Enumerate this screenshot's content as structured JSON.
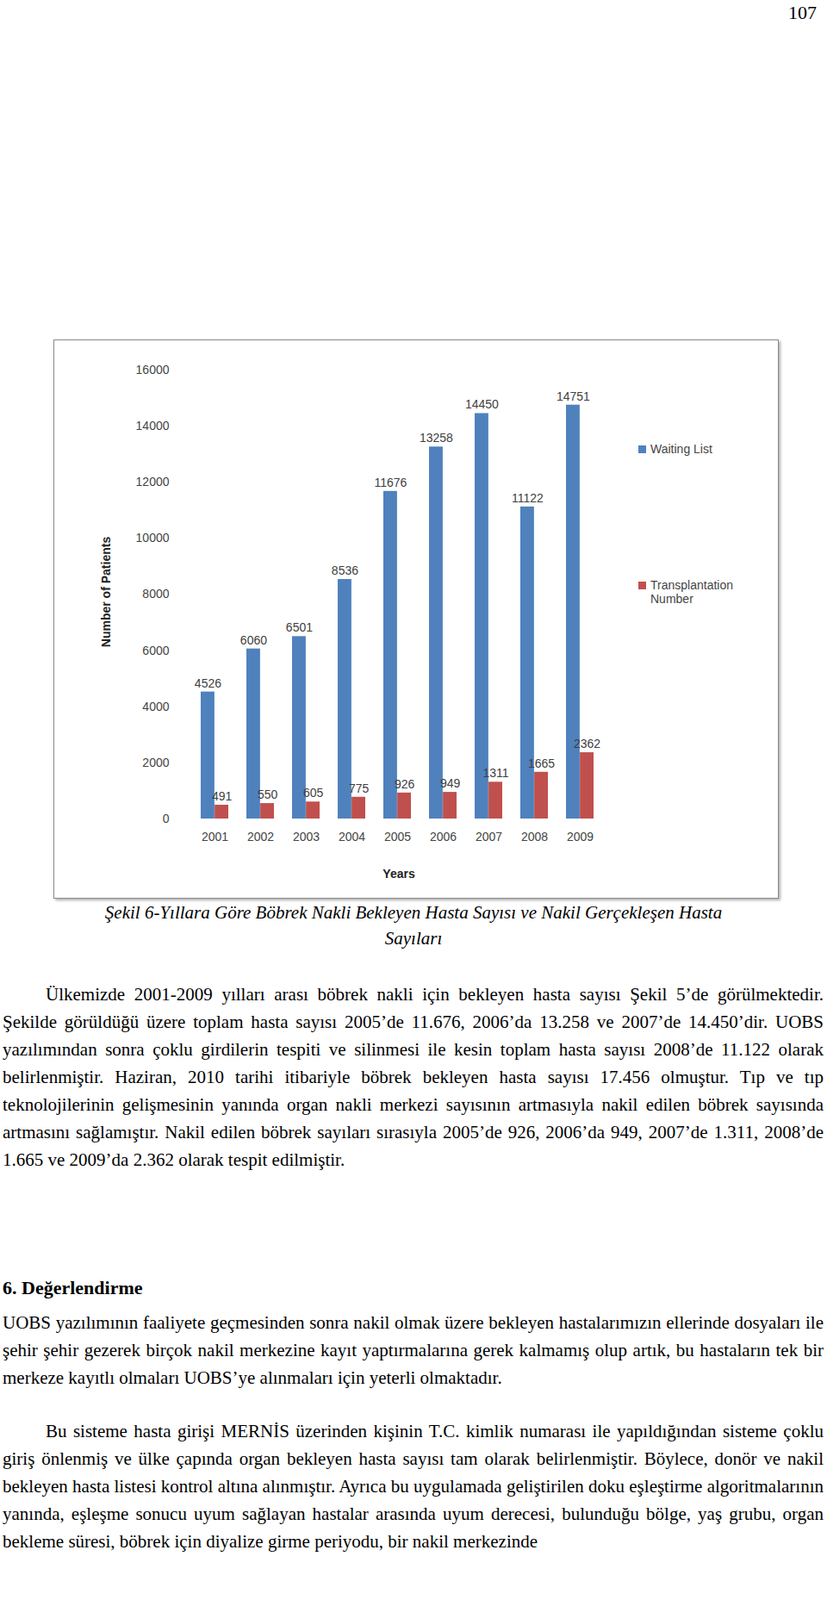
{
  "page_number": "107",
  "chart_data": {
    "type": "bar",
    "x_label": "Years",
    "y_label": "Number of Patients",
    "categories": [
      "2001",
      "2002",
      "2003",
      "2004",
      "2005",
      "2006",
      "2007",
      "2008",
      "2009"
    ],
    "series": [
      {
        "name": "Waiting List",
        "color": "#4f81bd",
        "values": [
          4526,
          6060,
          6501,
          8536,
          11676,
          13258,
          14450,
          11122,
          14751
        ]
      },
      {
        "name": "Transplantation Number",
        "color": "#c0504d",
        "values": [
          491,
          550,
          605,
          775,
          926,
          949,
          1311,
          1665,
          2362
        ]
      }
    ],
    "ylim": [
      0,
      16000
    ],
    "yticks": [
      0,
      2000,
      4000,
      6000,
      8000,
      10000,
      12000,
      14000,
      16000
    ],
    "grid": false,
    "legend": "right",
    "data_labels": true
  },
  "caption": "Şekil 6-Yıllara Göre Böbrek Nakli Bekleyen Hasta Sayısı ve Nakil Gerçekleşen Hasta Sayıları",
  "paragraphs": [
    "Ülkemizde 2001-2009 yılları arası böbrek nakli için bekleyen hasta sayısı Şekil 5’de görülmektedir. Şekilde görüldüğü üzere toplam hasta sayısı 2005’de 11.676, 2006’da 13.258 ve 2007’de 14.450’dir. UOBS yazılımından sonra çoklu girdilerin tespiti ve silinmesi ile kesin toplam hasta sayısı 2008’de 11.122 olarak belirlenmiştir. Haziran, 2010 tarihi itibariyle böbrek bekleyen hasta sayısı 17.456 olmuştur. Tıp ve tıp teknolojilerinin gelişmesinin yanında organ nakli merkezi sayısının artmasıyla nakil edilen böbrek sayısında artmasını sağlamıştır. Nakil edilen böbrek sayıları sırasıyla 2005’de 926, 2006’da 949, 2007’de 1.311, 2008’de 1.665 ve 2009’da 2.362 olarak tespit edilmiştir."
  ],
  "section": {
    "heading": "6. Değerlendirme",
    "paragraphs": [
      "UOBS yazılımının faaliyete geçmesinden sonra nakil olmak üzere bekleyen hastalarımızın ellerinde dosyaları ile şehir şehir gezerek birçok nakil merkezine kayıt yaptırmalarına gerek kalmamış olup artık, bu hastaların tek bir merkeze kayıtlı olmaları UOBS’ye alınmaları için yeterli olmaktadır.",
      "Bu sisteme hasta girişi MERNİS üzerinden kişinin T.C. kimlik numarası ile yapıldığından sisteme çoklu giriş önlenmiş ve ülke çapında organ bekleyen hasta sayısı tam olarak belirlenmiştir. Böylece, donör ve nakil bekleyen hasta listesi kontrol altına alınmıştır. Ayrıca bu uygulamada geliştirilen doku eşleştirme algoritmalarının yanında, eşleşme sonucu uyum sağlayan hastalar arasında uyum derecesi, bulunduğu bölge, yaş grubu, organ bekleme süresi, böbrek için diyalize girme periyodu, bir nakil merkezinde"
    ]
  }
}
